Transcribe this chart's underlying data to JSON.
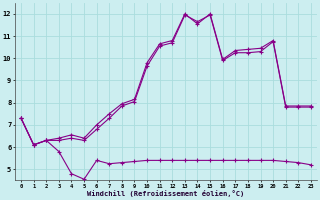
{
  "background_color": "#cceef0",
  "grid_color": "#aadddd",
  "line_color": "#880088",
  "xlabel": "Windchill (Refroidissement éolien,°C)",
  "xlim": [
    -0.5,
    23.5
  ],
  "ylim": [
    4.5,
    12.5
  ],
  "yticks": [
    5,
    6,
    7,
    8,
    9,
    10,
    11,
    12
  ],
  "xticks": [
    0,
    1,
    2,
    3,
    4,
    5,
    6,
    7,
    8,
    9,
    10,
    11,
    12,
    13,
    14,
    15,
    16,
    17,
    18,
    19,
    20,
    21,
    22,
    23
  ],
  "series1_x": [
    0,
    1,
    2,
    3,
    4,
    5,
    6,
    7,
    8,
    9,
    10,
    11,
    12,
    13,
    14,
    15,
    16,
    17,
    18,
    19,
    20,
    21,
    22,
    23
  ],
  "series1_y": [
    7.3,
    6.1,
    6.3,
    5.8,
    4.8,
    4.55,
    5.4,
    5.25,
    5.3,
    5.35,
    5.4,
    5.4,
    5.4,
    5.4,
    5.4,
    5.4,
    5.4,
    5.4,
    5.4,
    5.4,
    5.4,
    5.35,
    5.3,
    5.2
  ],
  "series2_x": [
    0,
    1,
    2,
    3,
    4,
    5,
    6,
    7,
    8,
    9,
    10,
    11,
    12,
    13,
    14,
    15,
    16,
    17,
    18,
    19,
    20,
    21,
    22,
    23
  ],
  "series2_y": [
    7.3,
    6.1,
    6.3,
    6.3,
    6.4,
    6.3,
    6.8,
    7.3,
    7.85,
    8.05,
    9.65,
    10.55,
    10.7,
    11.95,
    11.65,
    11.95,
    9.9,
    10.25,
    10.25,
    10.3,
    10.75,
    7.8,
    7.8,
    7.8
  ],
  "series3_x": [
    0,
    1,
    2,
    3,
    4,
    5,
    6,
    7,
    8,
    9,
    10,
    11,
    12,
    13,
    14,
    15,
    16,
    17,
    18,
    19,
    20,
    21,
    22,
    23
  ],
  "series3_y": [
    7.3,
    6.1,
    6.3,
    6.4,
    6.55,
    6.4,
    7.0,
    7.5,
    7.95,
    8.15,
    9.8,
    10.65,
    10.8,
    12.0,
    11.55,
    12.0,
    9.95,
    10.35,
    10.4,
    10.45,
    10.8,
    7.85,
    7.85,
    7.85
  ]
}
